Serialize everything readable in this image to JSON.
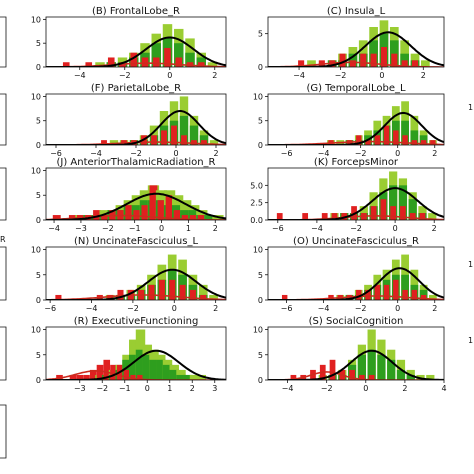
{
  "colors": {
    "light_green": "#9ACD32",
    "green": "#2E9E1E",
    "red": "#E02020",
    "fit_black": "#000000",
    "fit_red": "#CC2B1E"
  },
  "side_labels": {
    "left_r": "R",
    "right_1": "1",
    "right_2": "1",
    "right_3": "1"
  },
  "chart_data": [
    {
      "type": "histogram",
      "title": "(B) FrontalLobe_R",
      "xlim": [
        -5.5,
        2.5
      ],
      "ylim": [
        0,
        10.5
      ],
      "xticks": [
        -4,
        -2,
        0,
        2
      ],
      "yticks": [
        0,
        5,
        10
      ],
      "fit": {
        "mu": 0.0,
        "sigma": 1.05,
        "peak": 6.2
      },
      "tail": {
        "mu": -1.0,
        "sigma": 1.5,
        "peak": 0.8
      },
      "bars": {
        "x": [
          -4.6,
          -4.1,
          -3.6,
          -3.1,
          -2.6,
          -2.1,
          -1.6,
          -1.1,
          -0.6,
          -0.1,
          0.4,
          0.9,
          1.4,
          1.9
        ],
        "light": [
          0,
          0,
          0,
          1,
          1,
          2,
          3,
          5,
          7,
          9,
          8,
          6,
          3,
          1
        ],
        "green": [
          0,
          0,
          0,
          0,
          1,
          1,
          2,
          3,
          5,
          6,
          5,
          3,
          2,
          0
        ],
        "red": [
          1,
          0,
          1,
          0,
          2,
          1,
          3,
          2,
          2,
          4,
          2,
          1,
          1,
          0
        ]
      }
    },
    {
      "type": "histogram",
      "title": "(C) Insula_L",
      "xlim": [
        -5.5,
        3.0
      ],
      "ylim": [
        0,
        7.5
      ],
      "xticks": [
        -4,
        -2,
        0,
        2
      ],
      "yticks": [
        0,
        5
      ],
      "fit": {
        "mu": 0.3,
        "sigma": 1.1,
        "peak": 5.2
      },
      "tail": {
        "mu": -1.5,
        "sigma": 1.4,
        "peak": 0.7
      },
      "bars": {
        "x": [
          -4.4,
          -3.9,
          -3.4,
          -2.9,
          -2.4,
          -1.9,
          -1.4,
          -0.9,
          -0.4,
          0.1,
          0.6,
          1.1,
          1.6,
          2.1
        ],
        "light": [
          0,
          0,
          1,
          0,
          1,
          2,
          3,
          4,
          6,
          7,
          6,
          4,
          2,
          1
        ],
        "green": [
          0,
          0,
          0,
          0,
          1,
          1,
          2,
          2,
          4,
          5,
          4,
          2,
          1,
          0
        ],
        "red": [
          0,
          1,
          0,
          1,
          1,
          2,
          1,
          2,
          2,
          3,
          2,
          1,
          1,
          0
        ]
      }
    },
    {
      "type": "histogram",
      "title": "(F) ParietalLobe_R",
      "xlim": [
        -6.5,
        2.5
      ],
      "ylim": [
        0,
        10.5
      ],
      "xticks": [
        -6,
        -4,
        -2,
        0,
        2
      ],
      "yticks": [
        0,
        5,
        10
      ],
      "fit": {
        "mu": 0.2,
        "sigma": 0.95,
        "peak": 7.0
      },
      "tail": {
        "mu": -1.0,
        "sigma": 1.8,
        "peak": 0.6
      },
      "bars": {
        "x": [
          -3.6,
          -3.1,
          -2.6,
          -2.1,
          -1.6,
          -1.1,
          -0.6,
          -0.1,
          0.4,
          0.9,
          1.4,
          1.9
        ],
        "light": [
          0,
          1,
          1,
          1,
          2,
          4,
          7,
          9,
          10,
          6,
          3,
          1
        ],
        "green": [
          0,
          0,
          0,
          1,
          1,
          2,
          4,
          5,
          6,
          4,
          2,
          0
        ],
        "red": [
          1,
          0,
          1,
          1,
          2,
          2,
          3,
          4,
          2,
          1,
          1,
          0
        ]
      }
    },
    {
      "type": "histogram",
      "title": "(G) TemporalLobe_L",
      "xlim": [
        -7.0,
        2.5
      ],
      "ylim": [
        0,
        10.5
      ],
      "xticks": [
        -6,
        -4,
        -2,
        0,
        2
      ],
      "yticks": [
        0,
        5,
        10
      ],
      "fit": {
        "mu": 0.3,
        "sigma": 1.0,
        "peak": 6.6
      },
      "tail": {
        "mu": -1.5,
        "sigma": 2.0,
        "peak": 0.7
      },
      "bars": {
        "x": [
          -5.6,
          -4.6,
          -3.6,
          -3.1,
          -2.6,
          -2.1,
          -1.6,
          -1.1,
          -0.6,
          -0.1,
          0.4,
          0.9,
          1.4,
          1.9
        ],
        "light": [
          0,
          0,
          1,
          1,
          1,
          2,
          3,
          5,
          6,
          8,
          9,
          6,
          3,
          1
        ],
        "green": [
          0,
          0,
          0,
          0,
          1,
          1,
          2,
          3,
          4,
          5,
          5,
          3,
          2,
          0
        ],
        "red": [
          0,
          0,
          1,
          0,
          1,
          2,
          1,
          2,
          4,
          3,
          2,
          1,
          1,
          1
        ]
      }
    },
    {
      "type": "histogram",
      "title": "(J) AnteriorThalamicRadiation_R",
      "xlim": [
        -4.3,
        2.4
      ],
      "ylim": [
        0,
        10.5
      ],
      "xticks": [
        -4,
        -3,
        -2,
        -1,
        0,
        1,
        2
      ],
      "yticks": [
        0,
        5,
        10
      ],
      "fit": {
        "mu": -0.2,
        "sigma": 1.1,
        "peak": 5.3
      },
      "tail": {
        "mu": -1.5,
        "sigma": 1.3,
        "peak": 0.9
      },
      "bars": {
        "x": [
          -3.9,
          -3.6,
          -3.3,
          -3.0,
          -2.7,
          -2.4,
          -2.1,
          -1.8,
          -1.5,
          -1.2,
          -0.9,
          -0.6,
          -0.3,
          0.0,
          0.3,
          0.6,
          0.9,
          1.2,
          1.5,
          1.8,
          2.1
        ],
        "light": [
          0,
          0,
          0,
          1,
          1,
          1,
          2,
          2,
          3,
          4,
          5,
          6,
          7,
          6,
          6,
          5,
          4,
          3,
          2,
          1,
          1
        ],
        "green": [
          0,
          0,
          0,
          0,
          1,
          1,
          1,
          2,
          2,
          3,
          3,
          4,
          4,
          4,
          3,
          3,
          2,
          2,
          1,
          1,
          0
        ],
        "red": [
          1,
          0,
          1,
          1,
          1,
          2,
          1,
          2,
          2,
          3,
          2,
          3,
          7,
          4,
          5,
          2,
          1,
          1,
          1,
          0,
          0
        ]
      }
    },
    {
      "type": "histogram",
      "title": "(K) ForcepsMinor",
      "xlim": [
        -6.5,
        2.5
      ],
      "ylim": [
        0,
        7.5
      ],
      "xticks": [
        -6,
        -4,
        -2,
        0,
        2
      ],
      "yticks": [
        0.0,
        2.5,
        5.0
      ],
      "fit": {
        "mu": 0.0,
        "sigma": 1.15,
        "peak": 4.6
      },
      "tail": {
        "mu": -1.0,
        "sigma": 1.6,
        "peak": 0.6
      },
      "bars": {
        "x": [
          -5.9,
          -4.6,
          -3.6,
          -3.1,
          -2.6,
          -2.1,
          -1.6,
          -1.1,
          -0.6,
          -0.1,
          0.4,
          0.9,
          1.4,
          1.9
        ],
        "light": [
          0,
          0,
          0,
          1,
          1,
          1,
          2,
          4,
          6,
          7,
          6,
          4,
          2,
          1
        ],
        "green": [
          0,
          0,
          0,
          0,
          1,
          1,
          1,
          2,
          4,
          5,
          5,
          3,
          1,
          0
        ],
        "red": [
          1,
          1,
          1,
          1,
          1,
          2,
          1,
          2,
          3,
          2,
          2,
          1,
          1,
          0
        ]
      }
    },
    {
      "type": "histogram",
      "title": "(N) UncinateFasciculus_L",
      "xlim": [
        -6.2,
        2.5
      ],
      "ylim": [
        0,
        10.5
      ],
      "xticks": [
        -6,
        -4,
        -2,
        0,
        2
      ],
      "yticks": [
        0,
        5,
        10
      ],
      "fit": {
        "mu": -0.1,
        "sigma": 1.15,
        "peak": 6.0
      },
      "tail": {
        "mu": -1.5,
        "sigma": 1.8,
        "peak": 1.0
      },
      "bars": {
        "x": [
          -5.6,
          -4.6,
          -3.6,
          -3.1,
          -2.6,
          -2.1,
          -1.6,
          -1.1,
          -0.6,
          -0.1,
          0.4,
          0.9,
          1.4,
          1.9
        ],
        "light": [
          0,
          0,
          0,
          1,
          1,
          2,
          3,
          5,
          7,
          9,
          8,
          5,
          3,
          1
        ],
        "green": [
          0,
          0,
          0,
          0,
          1,
          1,
          2,
          3,
          4,
          6,
          5,
          3,
          1,
          0
        ],
        "red": [
          1,
          0,
          1,
          1,
          2,
          2,
          2,
          3,
          4,
          4,
          3,
          2,
          1,
          0
        ]
      }
    },
    {
      "type": "histogram",
      "title": "(O) UncinateFasciculus_R",
      "xlim": [
        -7.0,
        2.5
      ],
      "ylim": [
        0,
        10.5
      ],
      "xticks": [
        -6,
        -4,
        -2,
        0,
        2
      ],
      "yticks": [
        0,
        5,
        10
      ],
      "fit": {
        "mu": 0.1,
        "sigma": 1.05,
        "peak": 6.3
      },
      "tail": {
        "mu": -1.2,
        "sigma": 1.8,
        "peak": 0.8
      },
      "bars": {
        "x": [
          -6.1,
          -4.6,
          -3.6,
          -3.1,
          -2.6,
          -2.1,
          -1.6,
          -1.1,
          -0.6,
          -0.1,
          0.4,
          0.9,
          1.4,
          1.9
        ],
        "light": [
          0,
          0,
          0,
          1,
          1,
          2,
          3,
          5,
          6,
          8,
          9,
          6,
          3,
          1
        ],
        "green": [
          0,
          0,
          0,
          0,
          1,
          1,
          2,
          3,
          4,
          5,
          5,
          3,
          2,
          0
        ],
        "red": [
          1,
          0,
          1,
          1,
          1,
          2,
          2,
          3,
          3,
          4,
          2,
          2,
          1,
          0
        ]
      }
    },
    {
      "type": "histogram",
      "title": "(R) ExecutiveFunctioning",
      "xlim": [
        -4.5,
        3.5
      ],
      "ylim": [
        0,
        10.5
      ],
      "xticks": [
        -3,
        -2,
        -1,
        0,
        1,
        2,
        3
      ],
      "yticks": [
        0,
        5,
        10
      ],
      "fit": {
        "mu": 0.4,
        "sigma": 1.0,
        "peak": 5.8
      },
      "tail": {
        "mu": -2.3,
        "sigma": 0.9,
        "peak": 1.8
      },
      "bars": {
        "x": [
          -4.2,
          -3.9,
          -3.6,
          -3.3,
          -3.0,
          -2.7,
          -2.4,
          -2.1,
          -1.8,
          -1.5,
          -1.2,
          -0.9,
          -0.6,
          -0.3,
          0.0,
          0.3,
          0.6,
          0.9,
          1.2,
          1.5,
          1.8,
          2.1,
          2.4,
          2.7
        ],
        "light": [
          0,
          0,
          0,
          0,
          0,
          0,
          0,
          1,
          1,
          2,
          3,
          5,
          8,
          10,
          7,
          6,
          5,
          4,
          3,
          2,
          1,
          1,
          1,
          0
        ],
        "green": [
          0,
          0,
          0,
          0,
          0,
          0,
          0,
          0,
          1,
          1,
          2,
          4,
          5,
          6,
          5,
          4,
          4,
          3,
          2,
          1,
          1,
          0,
          0,
          0
        ],
        "red": [
          0,
          1,
          0,
          1,
          1,
          1,
          2,
          3,
          4,
          3,
          3,
          2,
          1,
          1,
          0,
          0,
          0,
          0,
          0,
          0,
          0,
          0,
          0,
          0
        ]
      }
    },
    {
      "type": "histogram",
      "title": "(S) SocialCognition",
      "xlim": [
        -5.0,
        4.0
      ],
      "ylim": [
        0,
        10.5
      ],
      "xticks": [
        -4,
        -2,
        0,
        2,
        4
      ],
      "yticks": [
        0,
        5,
        10
      ],
      "fit": {
        "mu": 0.3,
        "sigma": 1.05,
        "peak": 5.8
      },
      "tail": {
        "mu": -2.0,
        "sigma": 0.8,
        "peak": 1.6
      },
      "bars": {
        "x": [
          -4.2,
          -3.7,
          -3.2,
          -2.7,
          -2.2,
          -1.7,
          -1.2,
          -0.7,
          -0.2,
          0.3,
          0.8,
          1.3,
          1.8,
          2.3,
          2.8,
          3.3
        ],
        "light": [
          0,
          0,
          0,
          0,
          1,
          1,
          2,
          4,
          7,
          10,
          8,
          6,
          4,
          2,
          1,
          1
        ],
        "green": [
          0,
          0,
          0,
          0,
          0,
          1,
          1,
          3,
          5,
          6,
          5,
          4,
          2,
          1,
          0,
          0
        ],
        "red": [
          0,
          1,
          1,
          2,
          3,
          4,
          2,
          2,
          1,
          1,
          0,
          0,
          0,
          0,
          0,
          0
        ]
      }
    }
  ]
}
